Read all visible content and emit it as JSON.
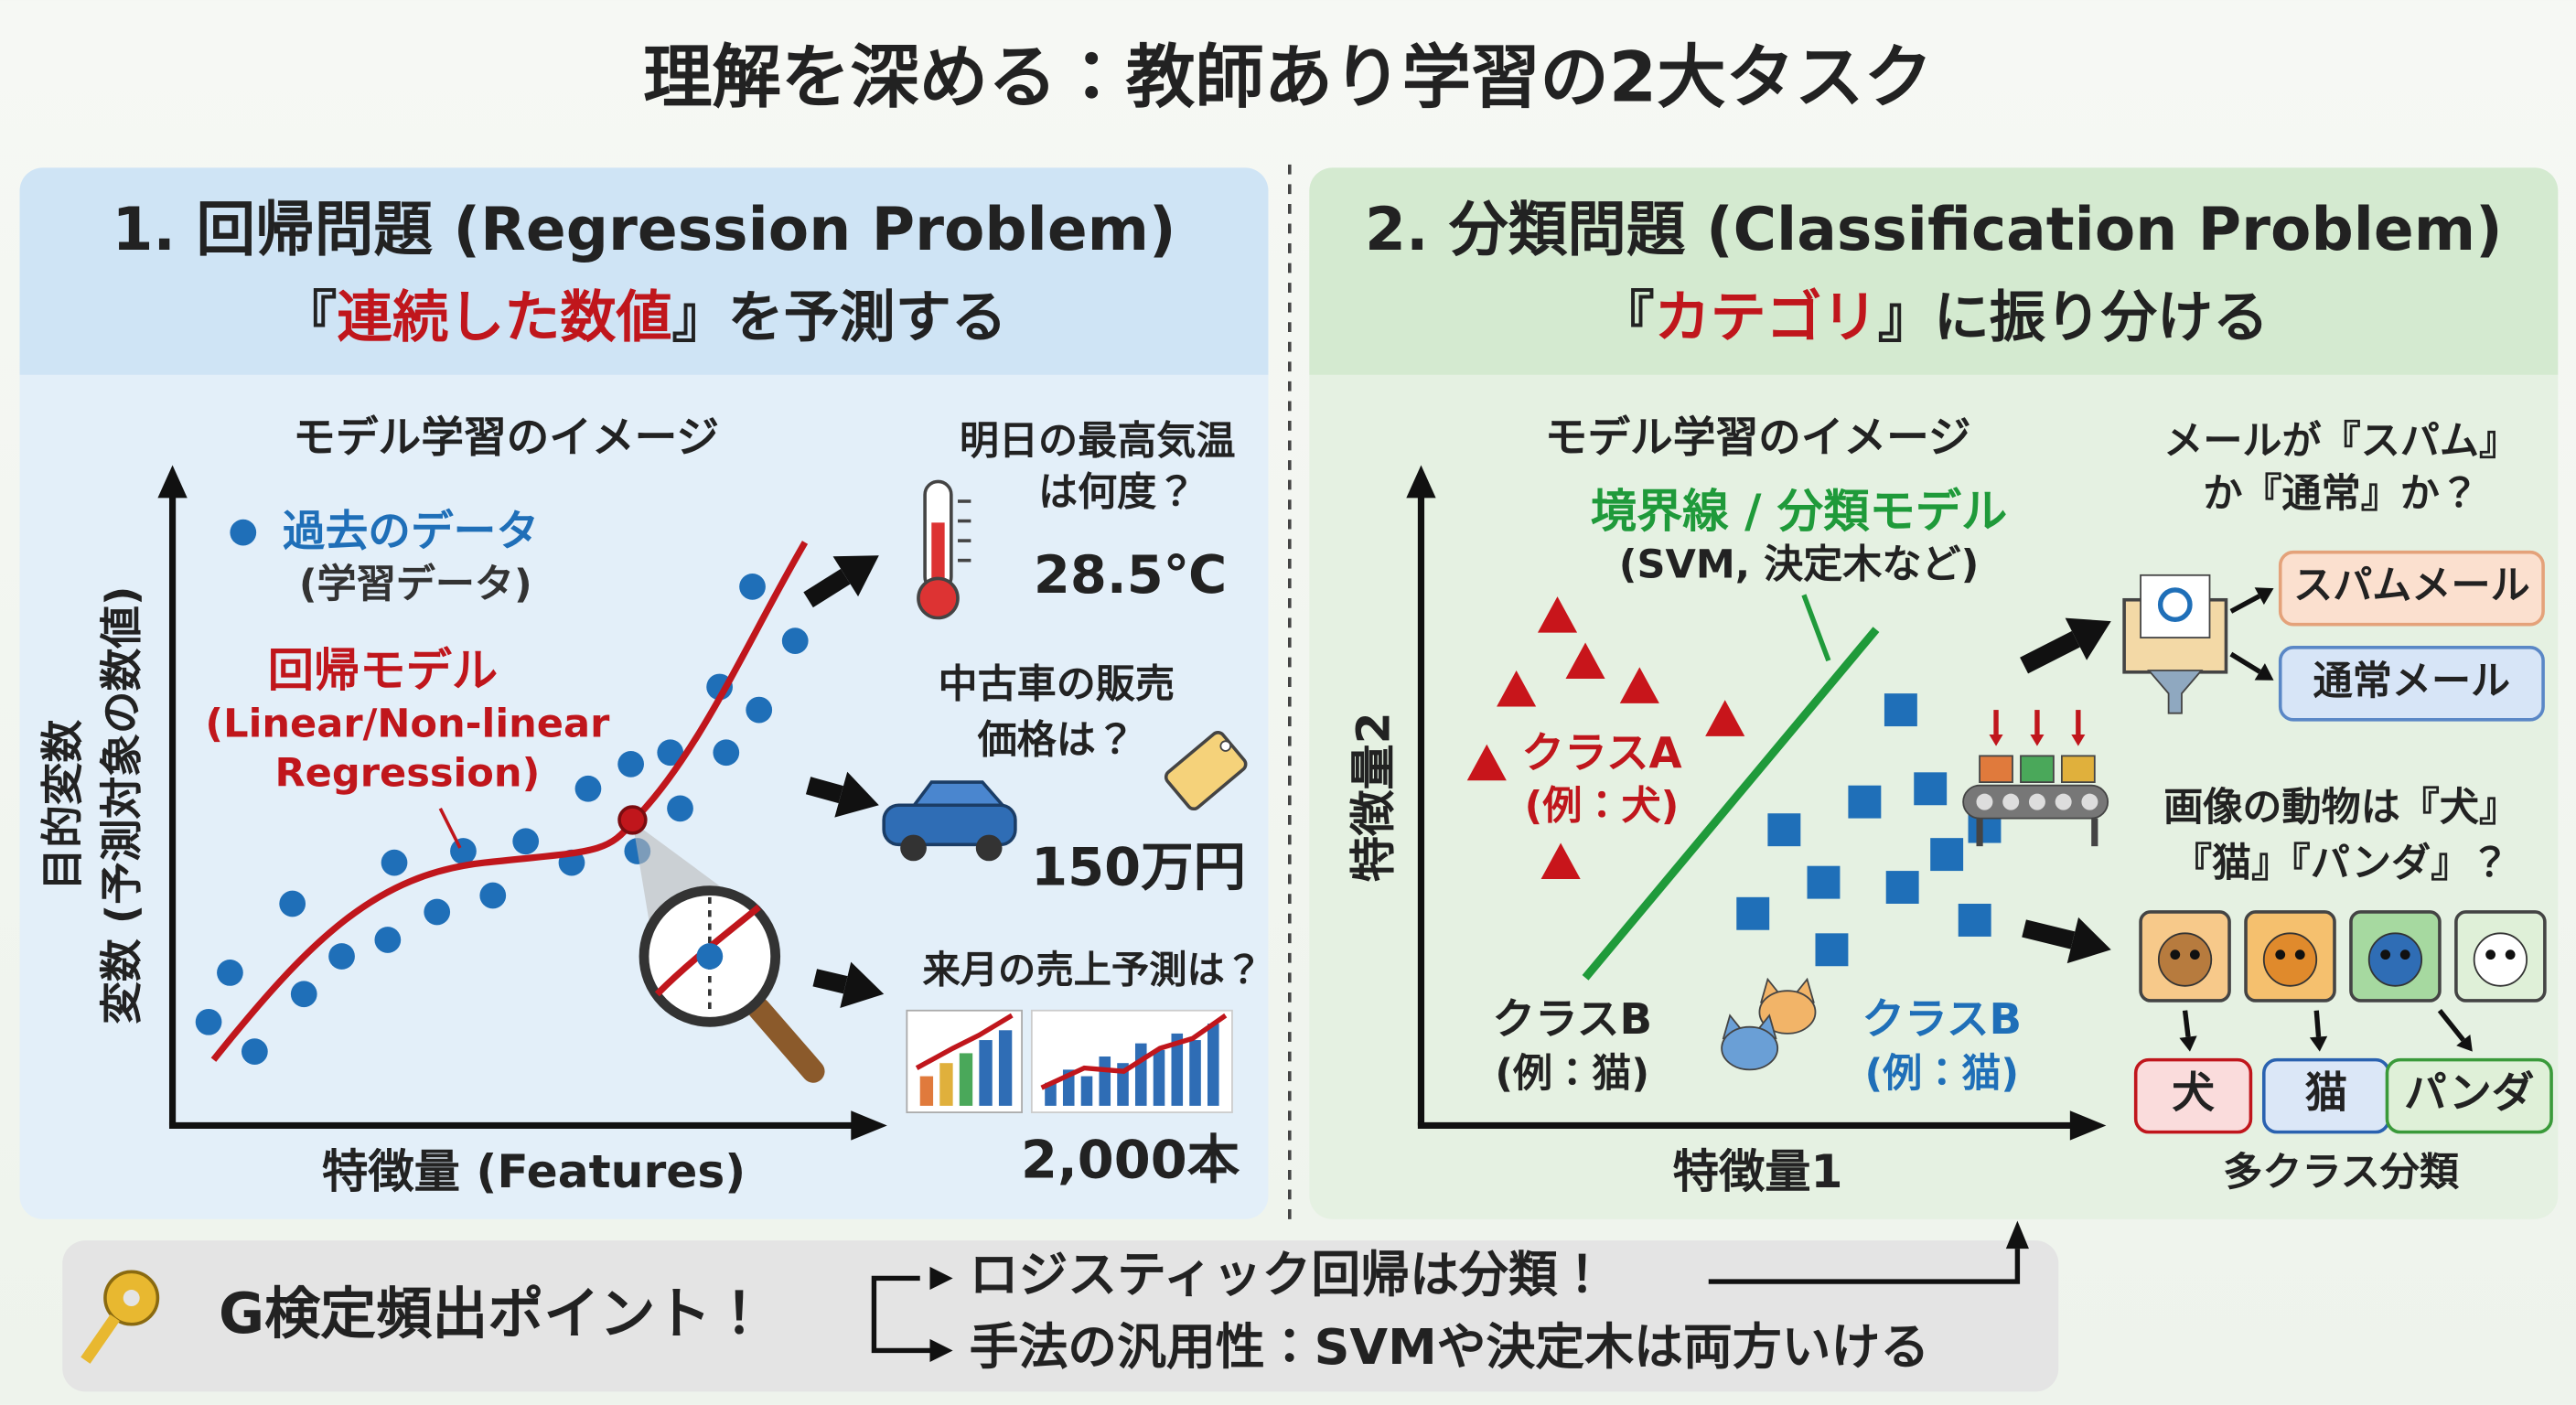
{
  "title": "理解を深める：教師あり学習の2大タスク",
  "regression": {
    "heading": "1. 回帰問題 (Regression Problem)",
    "subtitle": [
      "『",
      "連続した数値",
      "』を予測する"
    ],
    "diagram_title": "モデル学習のイメージ",
    "y_axis_label": [
      "目的変数",
      "変数 (予測対象の数値)"
    ],
    "x_axis_label": "特徴量 (Features)",
    "legend": [
      "過去のデータ",
      "(学習データ)"
    ],
    "model_label": [
      "回帰モデル",
      "(Linear/Non-linear",
      "Regression)"
    ],
    "examples": [
      {
        "question": [
          "明日の最高気温",
          "は何度？"
        ],
        "answer": "28.5℃"
      },
      {
        "question": [
          "中古車の販売",
          "価格は？"
        ],
        "answer": "150万円"
      },
      {
        "question": [
          "来月の売上予測は？"
        ],
        "answer": "2,000本"
      }
    ]
  },
  "classification": {
    "heading": "2. 分類問題 (Classification Problem)",
    "subtitle": [
      "『",
      "カテゴリ",
      "』に振り分ける"
    ],
    "diagram_title": "モデル学習のイメージ",
    "y_axis_label": "特徴量2",
    "x_axis_label": "特徴量1",
    "boundary_label": [
      "境界線 / 分類モデル",
      "(SVM, 決定木など)"
    ],
    "class_a": [
      "クラスA",
      "(例：犬)"
    ],
    "class_b_left": [
      "クラスB",
      "(例：猫)"
    ],
    "class_b_right": [
      "クラスB",
      "(例：猫)"
    ],
    "email": {
      "question": [
        "メールが『スパム』",
        "か『通常』か？"
      ],
      "outputs": [
        "スパムメール",
        "通常メール"
      ]
    },
    "image": {
      "question": [
        "画像の動物は『犬』",
        "『猫』『パンダ』？"
      ],
      "outputs": [
        "犬",
        "猫",
        "パンダ"
      ],
      "caption": "多クラス分類"
    }
  },
  "footer": {
    "label": "G検定頻出ポイント！",
    "points": [
      "ロジスティック回帰は分類！",
      "手法の汎用性：SVMや決定木は両方いける"
    ]
  }
}
